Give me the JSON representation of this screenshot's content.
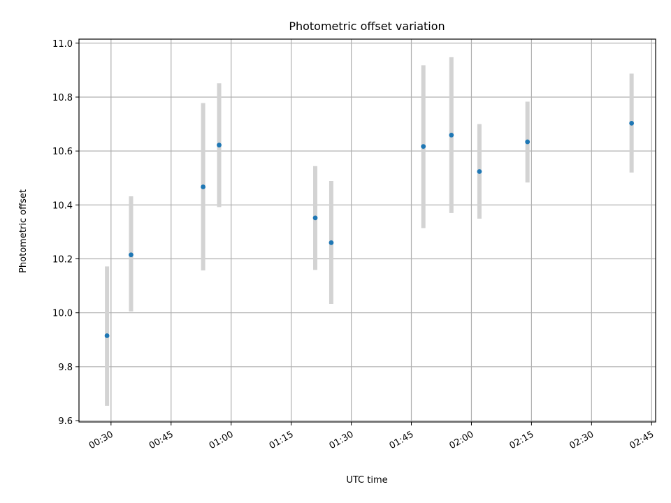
{
  "chart_data": {
    "type": "scatter",
    "title": "Photometric offset variation",
    "xlabel": "UTC time",
    "ylabel": "Photometric offset",
    "x_tick_labels": [
      "00:30",
      "00:45",
      "01:00",
      "01:15",
      "01:30",
      "01:45",
      "02:00",
      "02:15",
      "02:30",
      "02:45"
    ],
    "y_tick_labels": [
      "9.6",
      "9.8",
      "10.0",
      "10.2",
      "10.4",
      "10.6",
      "10.8",
      "11.0"
    ],
    "xlim": [
      "00:22",
      "02:46"
    ],
    "ylim": [
      9.595,
      11.015
    ],
    "grid": true,
    "colors": {
      "marker": "#1f77b4",
      "errorbar": "#d3d3d3",
      "grid": "#b0b0b0"
    },
    "points": [
      {
        "time": "00:29",
        "y": 9.915,
        "yerr_low": 9.655,
        "yerr_high": 10.172
      },
      {
        "time": "00:35",
        "y": 10.215,
        "yerr_low": 10.005,
        "yerr_high": 10.432
      },
      {
        "time": "00:53",
        "y": 10.467,
        "yerr_low": 10.157,
        "yerr_high": 10.778
      },
      {
        "time": "00:57",
        "y": 10.622,
        "yerr_low": 10.392,
        "yerr_high": 10.851
      },
      {
        "time": "01:21",
        "y": 10.352,
        "yerr_low": 10.159,
        "yerr_high": 10.544
      },
      {
        "time": "01:25",
        "y": 10.26,
        "yerr_low": 10.033,
        "yerr_high": 10.489
      },
      {
        "time": "01:48",
        "y": 10.617,
        "yerr_low": 10.314,
        "yerr_high": 10.918
      },
      {
        "time": "01:55",
        "y": 10.659,
        "yerr_low": 10.37,
        "yerr_high": 10.948
      },
      {
        "time": "02:02",
        "y": 10.524,
        "yerr_low": 10.349,
        "yerr_high": 10.7
      },
      {
        "time": "02:14",
        "y": 10.634,
        "yerr_low": 10.483,
        "yerr_high": 10.783
      },
      {
        "time": "02:40",
        "y": 10.703,
        "yerr_low": 10.52,
        "yerr_high": 10.887
      }
    ]
  }
}
